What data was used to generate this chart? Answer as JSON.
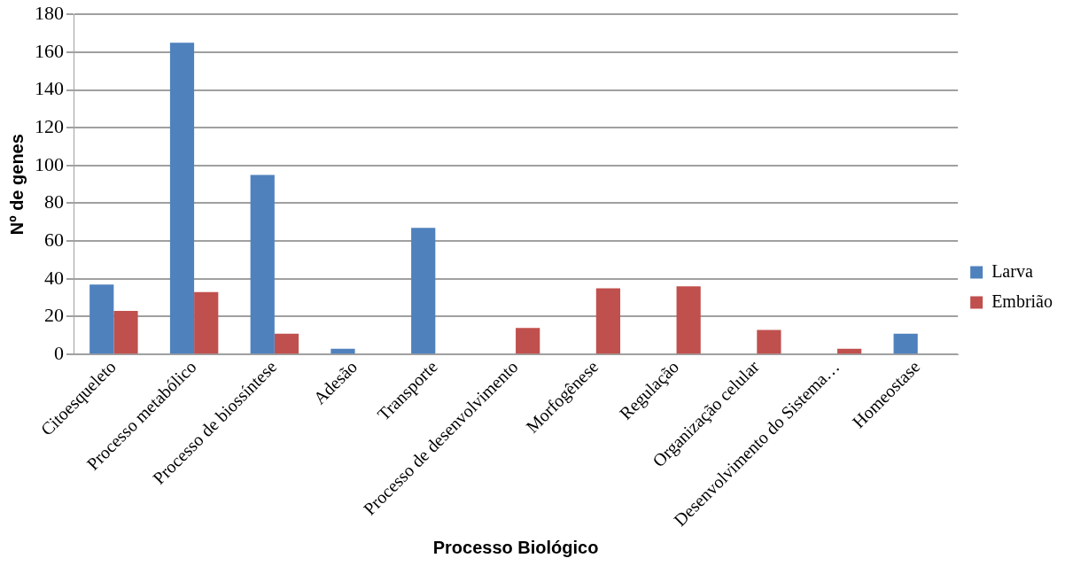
{
  "chart_data": {
    "type": "bar",
    "xlabel": "Processo Biológico",
    "ylabel": "Nº de genes",
    "categories": [
      "Citoesqueleto",
      "Processo metabólico",
      "Processo de biossíntese",
      "Adesão",
      "Transporte",
      "Processo de desenvolvimento",
      "Morfogênese",
      "Regulação",
      "Organização celular",
      "Desenvolvimento do Sistema…",
      "Homeostase"
    ],
    "series": [
      {
        "name": "Larva",
        "color": "#4f81bd",
        "values": [
          37,
          165,
          95,
          3,
          67,
          null,
          null,
          null,
          null,
          null,
          11
        ]
      },
      {
        "name": "Embrião",
        "color": "#c0504d",
        "values": [
          23,
          33,
          11,
          null,
          null,
          14,
          35,
          36,
          13,
          3,
          null
        ]
      }
    ],
    "ylim": [
      0,
      180
    ],
    "yticks": [
      0,
      20,
      40,
      60,
      80,
      100,
      120,
      140,
      160,
      180
    ],
    "grid": "y",
    "legend": "right"
  }
}
